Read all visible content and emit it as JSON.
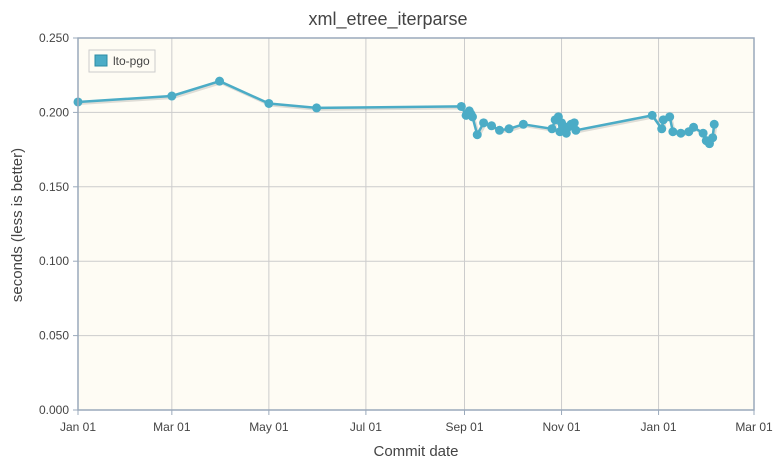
{
  "chart_data": {
    "type": "line",
    "title": "xml_etree_iterparse",
    "xlabel": "Commit date",
    "ylabel": "seconds (less is better)",
    "xlim": [
      "2023-01-01",
      "2024-03-01"
    ],
    "ylim": [
      0,
      0.25
    ],
    "y_ticks": [
      0,
      0.05,
      0.1,
      0.15,
      0.2,
      0.25
    ],
    "y_tick_labels": [
      "0.000",
      "0.050",
      "0.100",
      "0.150",
      "0.200",
      "0.250"
    ],
    "x_ticks": [
      "2023-01-01",
      "2023-03-01",
      "2023-05-01",
      "2023-07-01",
      "2023-09-01",
      "2023-11-01",
      "2024-01-01",
      "2024-03-01"
    ],
    "x_tick_labels": [
      "Jan 01",
      "Mar 01",
      "May 01",
      "Jul 01",
      "Sep 01",
      "Nov 01",
      "Jan 01",
      "Mar 01"
    ],
    "grid": true,
    "legend_position": "top-left",
    "colors": {
      "series": "#4bacc6",
      "plot_background": "#fefcf4",
      "grid": "#cccccc",
      "axis": "#9aa9bb"
    },
    "series": [
      {
        "name": "lto-pgo",
        "points": [
          [
            "2023-01-01",
            0.207
          ],
          [
            "2023-03-01",
            0.211
          ],
          [
            "2023-03-31",
            0.221
          ],
          [
            "2023-05-01",
            0.206
          ],
          [
            "2023-05-31",
            0.203
          ],
          [
            "2023-08-30",
            0.204
          ],
          [
            "2023-09-02",
            0.198
          ],
          [
            "2023-09-04",
            0.201
          ],
          [
            "2023-09-05",
            0.199
          ],
          [
            "2023-09-06",
            0.197
          ],
          [
            "2023-09-09",
            0.185
          ],
          [
            "2023-09-13",
            0.193
          ],
          [
            "2023-09-18",
            0.191
          ],
          [
            "2023-09-23",
            0.188
          ],
          [
            "2023-09-29",
            0.189
          ],
          [
            "2023-10-08",
            0.192
          ],
          [
            "2023-10-26",
            0.189
          ],
          [
            "2023-10-28",
            0.195
          ],
          [
            "2023-10-30",
            0.197
          ],
          [
            "2023-10-31",
            0.187
          ],
          [
            "2023-11-01",
            0.193
          ],
          [
            "2023-11-02",
            0.191
          ],
          [
            "2023-11-04",
            0.186
          ],
          [
            "2023-11-05",
            0.19
          ],
          [
            "2023-11-07",
            0.192
          ],
          [
            "2023-11-09",
            0.193
          ],
          [
            "2023-11-10",
            0.188
          ],
          [
            "2023-12-28",
            0.198
          ],
          [
            "2024-01-03",
            0.189
          ],
          [
            "2024-01-04",
            0.195
          ],
          [
            "2024-01-08",
            0.197
          ],
          [
            "2024-01-10",
            0.187
          ],
          [
            "2024-01-15",
            0.186
          ],
          [
            "2024-01-20",
            0.187
          ],
          [
            "2024-01-23",
            0.19
          ],
          [
            "2024-01-29",
            0.186
          ],
          [
            "2024-01-31",
            0.181
          ],
          [
            "2024-02-02",
            0.179
          ],
          [
            "2024-02-04",
            0.183
          ],
          [
            "2024-02-05",
            0.192
          ]
        ]
      }
    ]
  }
}
